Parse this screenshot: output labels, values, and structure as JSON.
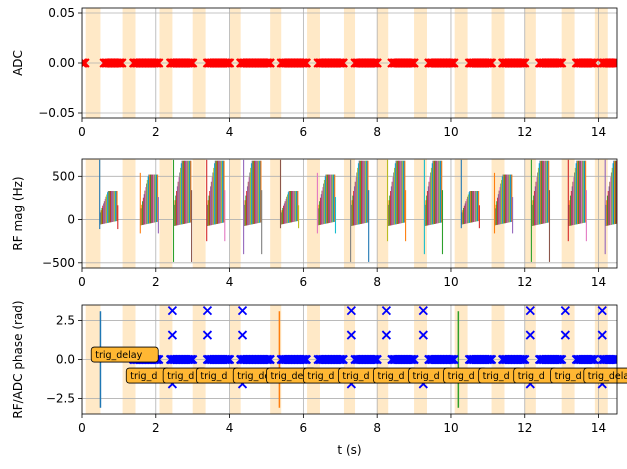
{
  "chart_data": [
    {
      "type": "scatter",
      "title": "",
      "ylabel": "ADC",
      "xlabel": "",
      "xlim": [
        0,
        14.5
      ],
      "ylim": [
        -0.055,
        0.055
      ],
      "xticks": [
        0,
        2,
        4,
        6,
        8,
        10,
        12,
        14
      ],
      "yticks": [
        -0.05,
        0.0,
        0.05
      ],
      "ytick_labels": [
        "−0.05",
        "0.00",
        "0.05"
      ],
      "grid": true,
      "series": [
        {
          "color": "#ff0000",
          "marker": "x",
          "points_y": 0,
          "x_segments": [
            [
              0.0,
              0.1
            ],
            [
              0.6,
              1.1
            ],
            [
              1.4,
              2.1
            ],
            [
              2.4,
              3.0
            ],
            [
              3.4,
              4.0
            ],
            [
              4.3,
              5.1
            ],
            [
              5.4,
              6.1
            ],
            [
              6.4,
              7.1
            ],
            [
              7.4,
              8.0
            ],
            [
              8.4,
              9.0
            ],
            [
              9.4,
              10.1
            ],
            [
              10.5,
              11.1
            ],
            [
              11.4,
              12.0
            ],
            [
              12.4,
              13.0
            ],
            [
              13.4,
              13.9
            ],
            [
              14.1,
              14.5
            ]
          ]
        }
      ],
      "shaded_spans": [
        [
          0.1,
          0.5
        ],
        [
          1.1,
          1.45
        ],
        [
          2.1,
          2.45
        ],
        [
          3.0,
          3.35
        ],
        [
          4.0,
          4.3
        ],
        [
          5.1,
          5.4
        ],
        [
          6.1,
          6.45
        ],
        [
          7.1,
          7.4
        ],
        [
          8.0,
          8.3
        ],
        [
          9.0,
          9.35
        ],
        [
          10.1,
          10.45
        ],
        [
          11.1,
          11.45
        ],
        [
          12.0,
          12.3
        ],
        [
          13.0,
          13.35
        ],
        [
          13.9,
          14.25
        ]
      ]
    },
    {
      "type": "line",
      "title": "",
      "ylabel": "RF mag (Hz)",
      "xlabel": "",
      "xlim": [
        0,
        14.5
      ],
      "ylim": [
        -560,
        700
      ],
      "xticks": [
        0,
        2,
        4,
        6,
        8,
        10,
        12,
        14
      ],
      "yticks": [
        -500,
        0,
        500
      ],
      "ytick_labels": [
        "−500",
        "0",
        "500"
      ],
      "grid": true,
      "shaded_spans": [
        [
          0.1,
          0.5
        ],
        [
          1.1,
          1.45
        ],
        [
          2.1,
          2.45
        ],
        [
          3.0,
          3.35
        ],
        [
          4.0,
          4.3
        ],
        [
          5.1,
          5.4
        ],
        [
          6.1,
          6.45
        ],
        [
          7.1,
          7.4
        ],
        [
          8.0,
          8.3
        ],
        [
          9.0,
          9.35
        ],
        [
          10.1,
          10.45
        ],
        [
          11.1,
          11.45
        ],
        [
          12.0,
          12.3
        ],
        [
          13.0,
          13.35
        ],
        [
          13.9,
          14.25
        ]
      ],
      "pulses": [
        {
          "start": 0.5,
          "amp": 330,
          "spike": 690,
          "low": -110
        },
        {
          "start": 1.6,
          "amp": 520,
          "spike": 540,
          "low": -160
        },
        {
          "start": 2.5,
          "amp": 680,
          "spike": 690,
          "low": -490
        },
        {
          "start": 3.4,
          "amp": 680,
          "spike": 690,
          "low": -250
        },
        {
          "start": 4.4,
          "amp": 680,
          "spike": 690,
          "low": -400
        },
        {
          "start": 5.4,
          "amp": 330,
          "spike": 690,
          "low": -100
        },
        {
          "start": 6.4,
          "amp": 520,
          "spike": 540,
          "low": -160
        },
        {
          "start": 7.3,
          "amp": 680,
          "spike": 690,
          "low": -490
        },
        {
          "start": 8.3,
          "amp": 680,
          "spike": 690,
          "low": -250
        },
        {
          "start": 9.3,
          "amp": 680,
          "spike": 690,
          "low": -400
        },
        {
          "start": 10.3,
          "amp": 330,
          "spike": 690,
          "low": -100
        },
        {
          "start": 11.2,
          "amp": 520,
          "spike": 540,
          "low": -160
        },
        {
          "start": 12.2,
          "amp": 680,
          "spike": 690,
          "low": -490
        },
        {
          "start": 13.2,
          "amp": 680,
          "spike": 690,
          "low": -250
        },
        {
          "start": 14.2,
          "amp": 680,
          "spike": 690,
          "low": -400
        }
      ]
    },
    {
      "type": "scatter",
      "title": "",
      "ylabel": "RF/ADC phase (rad)",
      "xlabel": "t (s)",
      "xlim": [
        0,
        14.5
      ],
      "ylim": [
        -3.5,
        3.5
      ],
      "xticks": [
        0,
        2,
        4,
        6,
        8,
        10,
        12,
        14
      ],
      "yticks": [
        -2.5,
        0.0,
        2.5
      ],
      "ytick_labels": [
        "−2.5",
        "0.0",
        "2.5"
      ],
      "grid": true,
      "shaded_spans": [
        [
          0.1,
          0.5
        ],
        [
          1.1,
          1.45
        ],
        [
          2.1,
          2.45
        ],
        [
          3.0,
          3.35
        ],
        [
          4.0,
          4.3
        ],
        [
          5.1,
          5.4
        ],
        [
          6.1,
          6.45
        ],
        [
          7.1,
          7.4
        ],
        [
          8.0,
          8.3
        ],
        [
          9.0,
          9.35
        ],
        [
          10.1,
          10.45
        ],
        [
          11.1,
          11.45
        ],
        [
          12.0,
          12.3
        ],
        [
          13.0,
          13.35
        ],
        [
          13.9,
          14.25
        ]
      ],
      "series": [
        {
          "color": "#0000ff",
          "marker": "x",
          "points_y": 0,
          "x_segments": [
            [
              1.4,
              2.1
            ],
            [
              2.4,
              3.0
            ],
            [
              3.4,
              4.0
            ],
            [
              4.3,
              5.1
            ],
            [
              5.4,
              6.1
            ],
            [
              6.4,
              7.1
            ],
            [
              7.4,
              8.0
            ],
            [
              8.4,
              9.0
            ],
            [
              9.4,
              10.1
            ],
            [
              10.5,
              11.1
            ],
            [
              11.4,
              12.0
            ],
            [
              12.4,
              13.0
            ],
            [
              13.4,
              13.9
            ],
            [
              14.1,
              14.5
            ]
          ]
        }
      ],
      "scatter_points": [
        {
          "x": 2.45,
          "y": 3.14
        },
        {
          "x": 2.45,
          "y": 1.57
        },
        {
          "x": 2.45,
          "y": -1.57
        },
        {
          "x": 3.4,
          "y": 3.14
        },
        {
          "x": 3.4,
          "y": 1.57
        },
        {
          "x": 4.35,
          "y": 3.14
        },
        {
          "x": 4.35,
          "y": 1.57
        },
        {
          "x": 4.35,
          "y": -1.57
        },
        {
          "x": 7.3,
          "y": 3.14
        },
        {
          "x": 7.3,
          "y": 1.57
        },
        {
          "x": 7.3,
          "y": -1.57
        },
        {
          "x": 8.25,
          "y": 3.14
        },
        {
          "x": 8.25,
          "y": 1.57
        },
        {
          "x": 9.25,
          "y": 3.14
        },
        {
          "x": 9.25,
          "y": 1.57
        },
        {
          "x": 9.25,
          "y": -1.57
        },
        {
          "x": 12.15,
          "y": 3.14
        },
        {
          "x": 12.15,
          "y": 1.57
        },
        {
          "x": 12.15,
          "y": -1.57
        },
        {
          "x": 13.1,
          "y": 3.14
        },
        {
          "x": 13.1,
          "y": 1.57
        },
        {
          "x": 14.1,
          "y": 3.14
        },
        {
          "x": 14.1,
          "y": 1.57
        },
        {
          "x": 14.1,
          "y": -1.57
        }
      ],
      "vlines": [
        {
          "x": 0.5,
          "y0": -3.1,
          "y1": 3.1,
          "color": "#1f77b4"
        },
        {
          "x": 5.35,
          "y0": -3.1,
          "y1": 3.1,
          "color": "#ff7f0e"
        },
        {
          "x": 10.2,
          "y0": -3.1,
          "y1": 3.1,
          "color": "#2ca02c"
        }
      ],
      "annotations": [
        {
          "text": "trig_delay",
          "x": 0.25,
          "y": 0.35
        },
        {
          "text": "trig_d",
          "x": 1.2,
          "y": -1.0
        },
        {
          "text": "trig_d",
          "x": 2.2,
          "y": -1.0
        },
        {
          "text": "trig_d",
          "x": 3.1,
          "y": -1.0
        },
        {
          "text": "trig_de",
          "x": 4.1,
          "y": -1.0
        },
        {
          "text": "trig_de",
          "x": 5.0,
          "y": -1.0
        },
        {
          "text": "trig_d",
          "x": 6.0,
          "y": -1.0
        },
        {
          "text": "trig_d",
          "x": 6.95,
          "y": -1.0
        },
        {
          "text": "trig_d",
          "x": 7.9,
          "y": -1.0
        },
        {
          "text": "trig_d",
          "x": 8.85,
          "y": -1.0
        },
        {
          "text": "trig_d",
          "x": 9.8,
          "y": -1.0
        },
        {
          "text": "trig_d",
          "x": 10.75,
          "y": -1.0
        },
        {
          "text": "trig_d",
          "x": 11.7,
          "y": -1.0
        },
        {
          "text": "trig_d",
          "x": 12.7,
          "y": -1.0
        },
        {
          "text": "trig_delay",
          "x": 13.6,
          "y": -1.0
        }
      ]
    }
  ],
  "colors": {
    "shade": "#ffe9c7",
    "grid": "#b0b0b0",
    "adc_marker": "#ff0000",
    "phase_marker": "#0000ff",
    "annotation_fill": "#ffb733",
    "annotation_edge": "#000000",
    "palette": [
      "#1f77b4",
      "#ff7f0e",
      "#2ca02c",
      "#d62728",
      "#9467bd",
      "#8c564b",
      "#e377c2",
      "#7f7f7f",
      "#bcbd22",
      "#17becf"
    ]
  }
}
